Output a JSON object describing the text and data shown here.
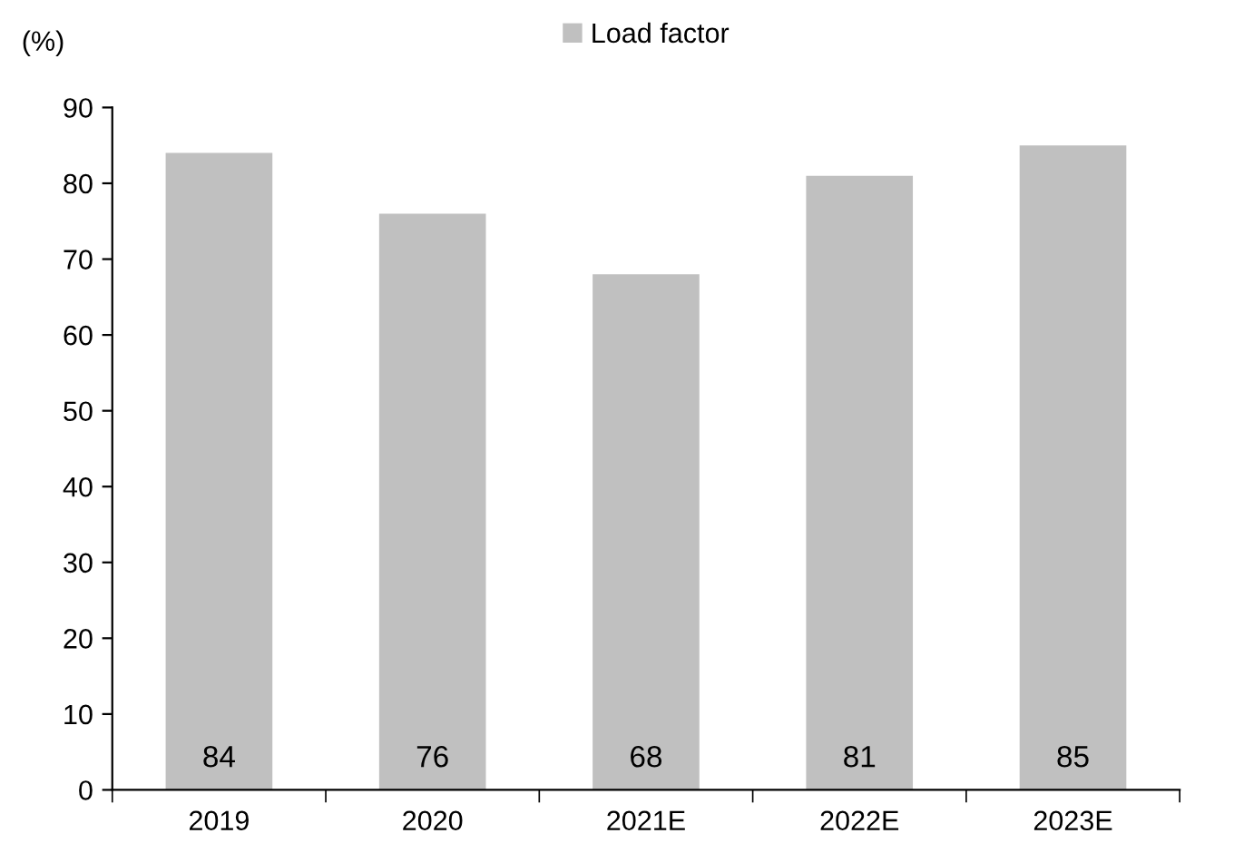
{
  "chart_data": {
    "type": "bar",
    "ylabel": "(%)",
    "categories": [
      "2019",
      "2020",
      "2021E",
      "2022E",
      "2023E"
    ],
    "series": [
      {
        "name": "Load factor",
        "color": "#c0c0c0",
        "values": [
          84,
          76,
          68,
          81,
          85
        ]
      }
    ],
    "ylim": [
      0,
      90
    ],
    "yticks": [
      0,
      10,
      20,
      30,
      40,
      50,
      60,
      70,
      80,
      90
    ],
    "data_labels": true,
    "legend": "top",
    "grid": false
  }
}
